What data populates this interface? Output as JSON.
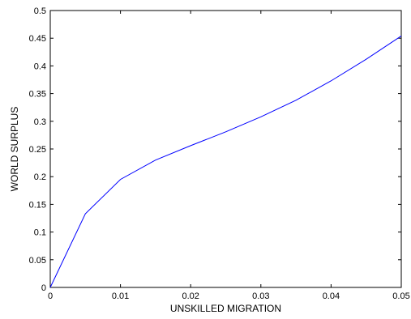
{
  "chart_data": {
    "type": "line",
    "title": "",
    "xlabel": "UNSKILLED MIGRATION",
    "ylabel": "WORLD SURPLUS",
    "xlim": [
      0,
      0.05
    ],
    "ylim": [
      0,
      0.5
    ],
    "x_ticks": [
      "0",
      "0.01",
      "0.02",
      "0.03",
      "0.04",
      "0.05"
    ],
    "y_ticks": [
      "0",
      "0.05",
      "0.1",
      "0.15",
      "0.2",
      "0.25",
      "0.3",
      "0.35",
      "0.4",
      "0.45",
      "0.5"
    ],
    "grid": false,
    "series": [
      {
        "color": "#0000ff",
        "x": [
          0,
          0.005,
          0.01,
          0.015,
          0.02,
          0.025,
          0.03,
          0.035,
          0.04,
          0.045,
          0.05
        ],
        "y": [
          0,
          0.133,
          0.195,
          0.23,
          0.256,
          0.281,
          0.308,
          0.338,
          0.373,
          0.412,
          0.454
        ]
      }
    ]
  }
}
